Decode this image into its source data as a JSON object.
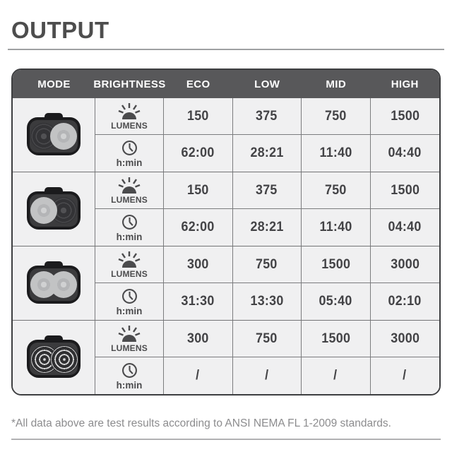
{
  "page_title": "OUTPUT",
  "table": {
    "headers": [
      "MODE",
      "BRIGHTNESS",
      "ECO",
      "LOW",
      "MID",
      "HIGH"
    ],
    "lumens_label": "LUMENS",
    "runtime_label": "h:min",
    "rows": [
      {
        "mode": "single-beam-right-lens-on",
        "lenses": [
          "off",
          "on"
        ],
        "lumens": [
          "150",
          "375",
          "750",
          "1500"
        ],
        "runtime": [
          "62:00",
          "28:21",
          "11:40",
          "04:40"
        ]
      },
      {
        "mode": "single-beam-left-lens-on",
        "lenses": [
          "on",
          "off"
        ],
        "lumens": [
          "150",
          "375",
          "750",
          "1500"
        ],
        "runtime": [
          "62:00",
          "28:21",
          "11:40",
          "04:40"
        ]
      },
      {
        "mode": "dual-beam-both-lenses-on",
        "lenses": [
          "on",
          "on"
        ],
        "lumens": [
          "300",
          "750",
          "1500",
          "3000"
        ],
        "runtime": [
          "31:30",
          "13:30",
          "05:40",
          "02:10"
        ]
      },
      {
        "mode": "flash-both-lenses",
        "lenses": [
          "flash",
          "flash"
        ],
        "lumens": [
          "300",
          "750",
          "1500",
          "3000"
        ],
        "runtime": [
          "/",
          "/",
          "/",
          "/"
        ]
      }
    ]
  },
  "footnote": "*All data above are test results according to ANSI NEMA FL 1-2009 standards.",
  "colors": {
    "header_bg": "#58585a",
    "header_text": "#ffffff",
    "cell_bg": "#f0f0f1",
    "cell_text": "#434346",
    "grid_line": "#7b7c7e",
    "outer_border": "#3d3e40",
    "title_text": "#4d4d4d",
    "footnote_text": "#8c8c8e"
  },
  "chart_data": {
    "type": "table",
    "title": "OUTPUT",
    "columns": [
      "MODE",
      "BRIGHTNESS",
      "ECO",
      "LOW",
      "MID",
      "HIGH"
    ],
    "rows": [
      {
        "mode": "right lens on",
        "lumens": [
          150,
          375,
          750,
          1500
        ],
        "runtime_h_min": [
          "62:00",
          "28:21",
          "11:40",
          "04:40"
        ]
      },
      {
        "mode": "left lens on",
        "lumens": [
          150,
          375,
          750,
          1500
        ],
        "runtime_h_min": [
          "62:00",
          "28:21",
          "11:40",
          "04:40"
        ]
      },
      {
        "mode": "both lenses on",
        "lumens": [
          300,
          750,
          1500,
          3000
        ],
        "runtime_h_min": [
          "31:30",
          "13:30",
          "05:40",
          "02:10"
        ]
      },
      {
        "mode": "both lenses flashing",
        "lumens": [
          300,
          750,
          1500,
          3000
        ],
        "runtime_h_min": [
          "/",
          "/",
          "/",
          "/"
        ]
      }
    ],
    "footnote": "*All data above are test results according to ANSI NEMA FL 1-2009 standards."
  }
}
